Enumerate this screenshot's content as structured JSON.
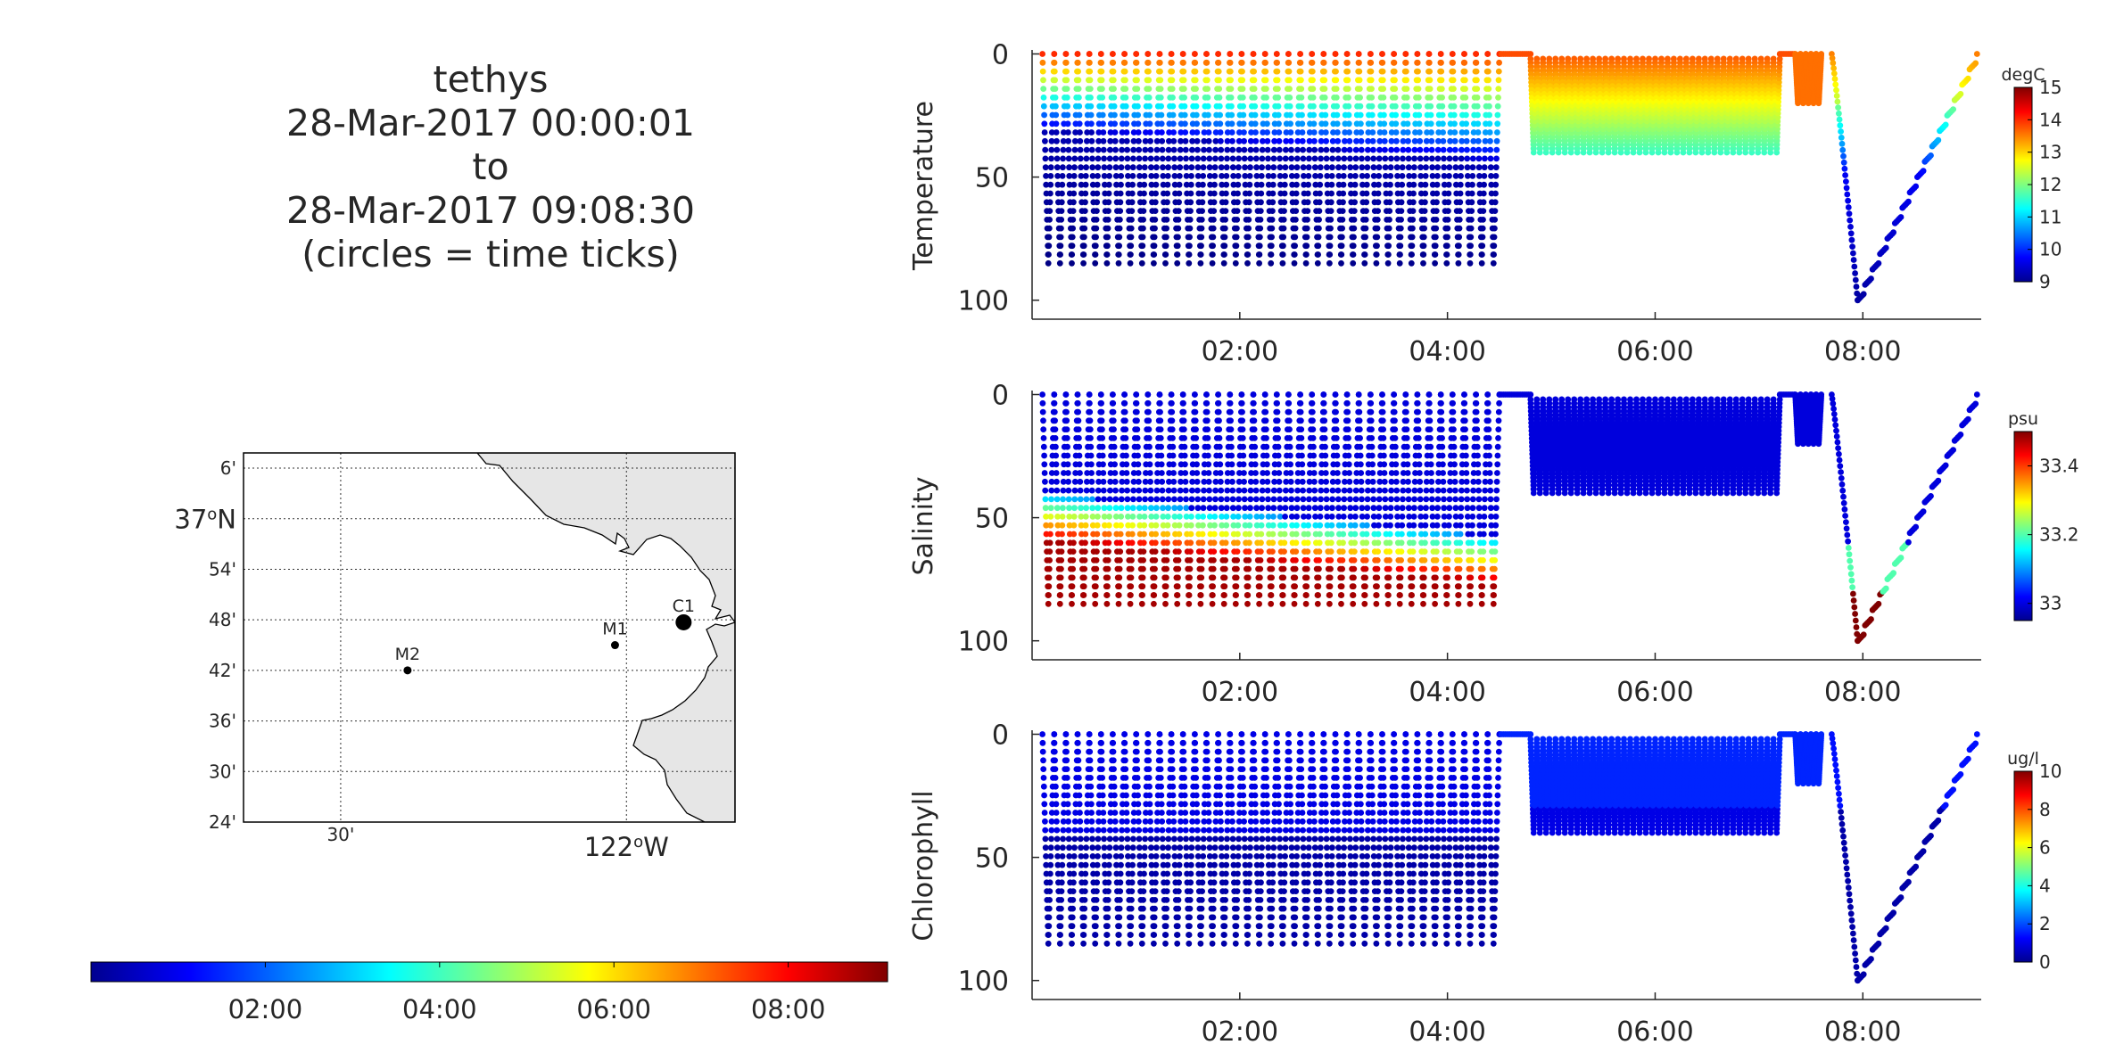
{
  "title_lines": [
    "tethys",
    "28-Mar-2017 00:00:01",
    "to",
    "28-Mar-2017 09:08:30",
    "(circles = time ticks)"
  ],
  "chart_data": [
    {
      "type": "map",
      "description_labels": {
        "lat_major": "37°N",
        "lon_major": "122°W"
      },
      "lat_ticks": [
        "6'",
        "37°N",
        "54'",
        "48'",
        "42'",
        "36'",
        "30'",
        "24'"
      ],
      "lon_ticks": [
        "30'",
        "122°W"
      ],
      "stations": [
        {
          "label": "M2",
          "lon": -122.383,
          "lat": 36.7
        },
        {
          "label": "M1",
          "lon": -122.02,
          "lat": 36.75
        },
        {
          "label": "C1",
          "lon": -121.9,
          "lat": 36.795
        }
      ],
      "track_point": {
        "lon": -121.9,
        "lat": 36.795
      },
      "xlim": [
        -122.67,
        -121.81
      ],
      "ylim": [
        36.4,
        37.13
      ],
      "land_color": "#e6e6e6",
      "grid": true
    },
    {
      "type": "colorbar",
      "colormap": "jet",
      "range_hours": [
        0,
        9.14
      ],
      "tick_labels": [
        "02:00",
        "04:00",
        "06:00",
        "08:00"
      ],
      "tick_hours": [
        2,
        4,
        6,
        8
      ]
    },
    {
      "type": "scatter",
      "ylabel": "Temperature",
      "units": "degC",
      "colorbar_ticks": [
        9,
        10,
        11,
        12,
        13,
        14,
        15
      ],
      "clim": [
        9,
        15
      ],
      "ylim": [
        0,
        105
      ],
      "y_ticks": [
        0,
        50,
        100
      ],
      "x_tick_labels": [
        "02:00",
        "04:00",
        "06:00",
        "08:00"
      ],
      "x_tick_hours": [
        2,
        4,
        6,
        8
      ],
      "xlim_hours": [
        0,
        9.14
      ]
    },
    {
      "type": "scatter",
      "ylabel": "Salinity",
      "units": "psu",
      "colorbar_ticks": [
        33,
        33.2,
        33.4
      ],
      "clim": [
        32.95,
        33.5
      ],
      "ylim": [
        0,
        105
      ],
      "y_ticks": [
        0,
        50,
        100
      ],
      "x_tick_labels": [
        "02:00",
        "04:00",
        "06:00",
        "08:00"
      ],
      "x_tick_hours": [
        2,
        4,
        6,
        8
      ],
      "xlim_hours": [
        0,
        9.14
      ]
    },
    {
      "type": "scatter",
      "ylabel": "Chlorophyll",
      "units": "ug/l",
      "colorbar_ticks": [
        0,
        2,
        4,
        6,
        8,
        10
      ],
      "clim": [
        0,
        10
      ],
      "ylim": [
        0,
        105
      ],
      "y_ticks": [
        0,
        50,
        100
      ],
      "x_tick_labels": [
        "02:00",
        "04:00",
        "06:00",
        "08:00"
      ],
      "x_tick_hours": [
        2,
        4,
        6,
        8
      ],
      "xlim_hours": [
        0,
        9.14
      ]
    }
  ],
  "profiles": {
    "phase1": {
      "start_hours": 0.1,
      "end_hours": 4.5,
      "count": 39,
      "max_depth_m": 85
    },
    "phase2": {
      "start_hours": 4.8,
      "end_hours": 7.2,
      "count": 40,
      "min_depth_m": 2,
      "max_depth_m": 40
    },
    "phase3": {
      "start_hours": 7.35,
      "end_hours": 7.6,
      "count": 5,
      "max_depth_m": 20
    },
    "final_dive": {
      "start_hours": 7.7,
      "bottom_hours": 7.95,
      "bottom_depth_m": 100,
      "end_hours": 9.1
    }
  }
}
